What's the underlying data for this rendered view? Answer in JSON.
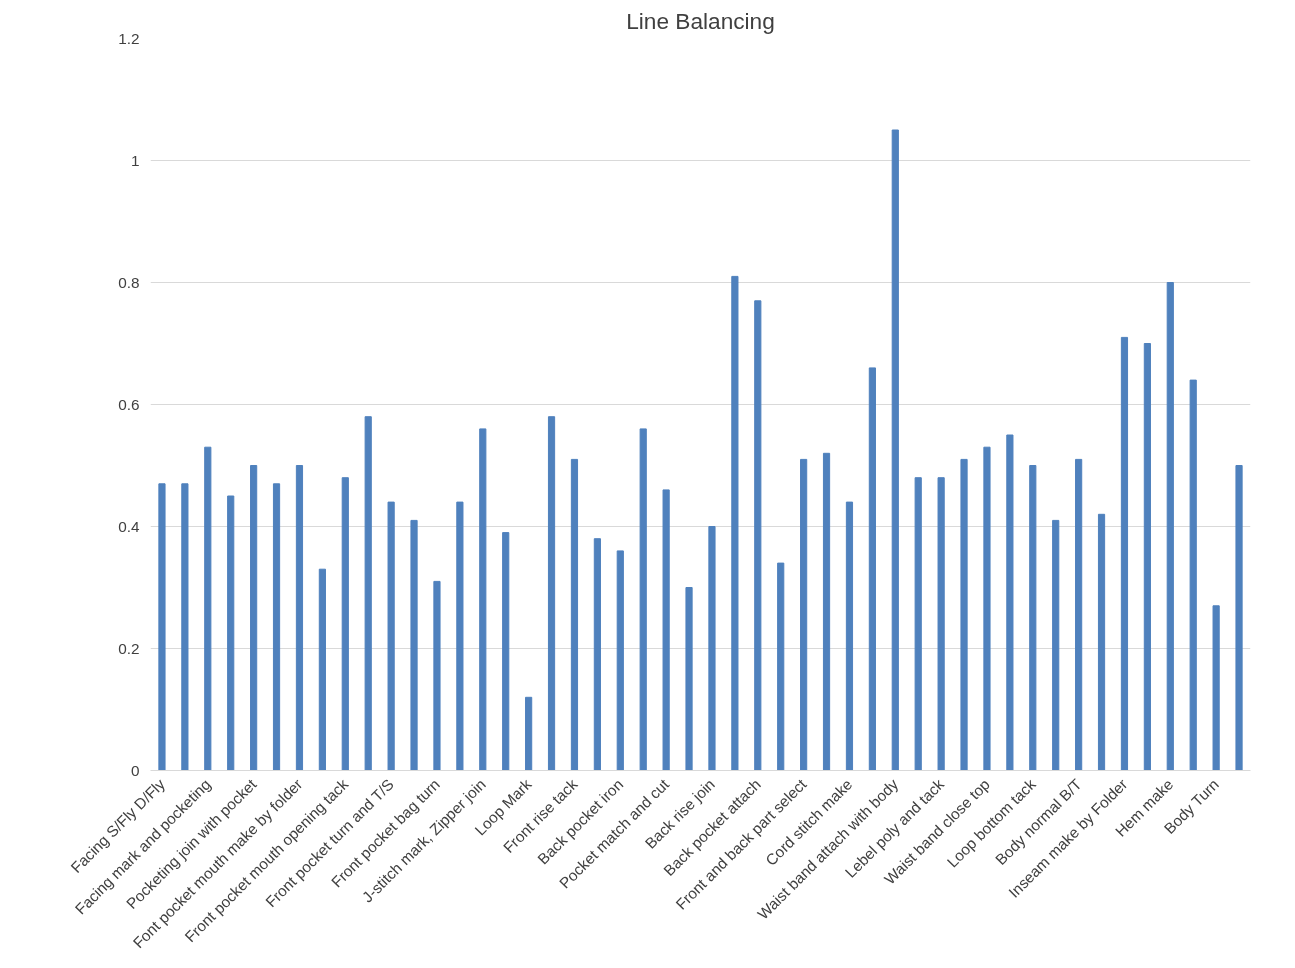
{
  "chart_data": {
    "type": "bar",
    "title": "Line Balancing",
    "categories": [
      "Facing S/Fly D/Fly",
      null,
      "Facing mark and pocketing",
      null,
      "Pocketing join with pocket",
      null,
      "Font pocket mouth make by folder",
      null,
      "Front pocket mouth opening tack",
      null,
      "Front pocket turn and T/S",
      null,
      "Front pocket bag turn",
      null,
      "J-stitch mark, Zipper join",
      null,
      "Loop Mark",
      null,
      "Front rise tack",
      null,
      "Back pocket iron",
      null,
      "Pocket match and cut",
      null,
      "Back rise join",
      null,
      "Back pocket attach",
      null,
      "Front and back part select",
      null,
      "Cord stitch make",
      null,
      "Waist band attach with body",
      null,
      "Lebel poly and tack",
      null,
      "Waist band close top",
      null,
      "Loop bottom tack",
      null,
      "Body normal B/T",
      null,
      "Inseam make by Folder",
      null,
      "Hem make",
      null,
      "Body Turn",
      null
    ],
    "values": [
      0.47,
      0.47,
      0.53,
      0.45,
      0.5,
      0.47,
      0.5,
      0.33,
      0.48,
      0.58,
      0.44,
      0.41,
      0.31,
      0.44,
      0.56,
      0.39,
      0.12,
      0.58,
      0.51,
      0.38,
      0.36,
      0.56,
      0.46,
      0.3,
      0.4,
      0.81,
      0.77,
      0.34,
      0.51,
      0.52,
      0.44,
      0.66,
      1.05,
      0.48,
      0.48,
      0.51,
      0.53,
      0.55,
      0.5,
      0.41,
      0.51,
      0.42,
      0.71,
      0.7,
      0.8,
      0.64,
      0.27,
      0.5
    ],
    "color": "#4f81bd",
    "ylim": [
      0,
      1.2
    ],
    "yticks": [
      0,
      0.2,
      0.4,
      0.6,
      0.8,
      1,
      1.2
    ],
    "grid": "y"
  }
}
